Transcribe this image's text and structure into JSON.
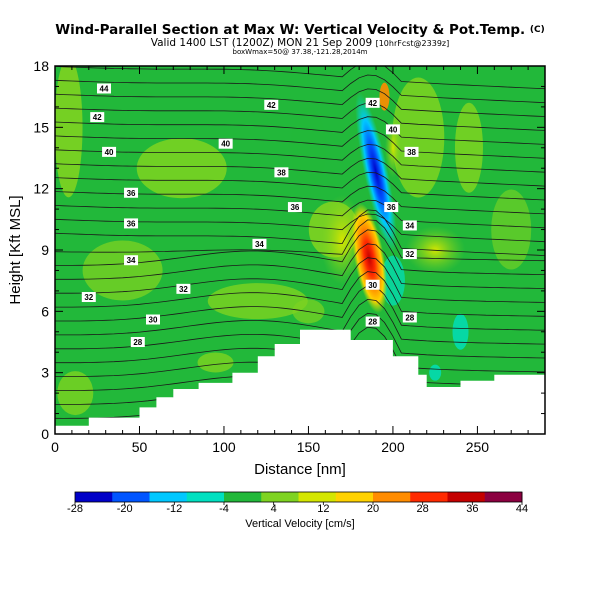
{
  "header": {
    "title": "Wind-Parallel Section at Max W: Vertical Velocity & Pot.Temp.",
    "title_mark": "(C)",
    "valid_line": "Valid 1400 LST (1200Z) MON 21 Sep 2009",
    "valid_suffix": "[10hrFcst@2339z]",
    "extra_line": "boxWmax=50@ 37.38,-121.28,2014m"
  },
  "chart_data": {
    "type": "contour",
    "xlabel": "Distance [nm]",
    "ylabel": "Height [Kft MSL]",
    "xlim": [
      0,
      290
    ],
    "ylim": [
      0,
      18
    ],
    "xticks": [
      "0",
      "50",
      "100",
      "150",
      "200",
      "250"
    ],
    "yticks": [
      "0",
      "3",
      "6",
      "9",
      "12",
      "15",
      "18"
    ],
    "colorbar": {
      "title": "Vertical Velocity [cm/s]",
      "tick_labels": [
        "-28",
        "-20",
        "-12",
        "-4",
        "4",
        "12",
        "20",
        "28",
        "36",
        "44"
      ],
      "colors": [
        "#0000c8",
        "#0055ff",
        "#00c8ff",
        "#00e0c0",
        "#22b83a",
        "#7ed321",
        "#d4e600",
        "#ffd200",
        "#ff8c00",
        "#ff2a00",
        "#c40000",
        "#8b0040"
      ]
    },
    "terrain": {
      "x": [
        0,
        20,
        20,
        50,
        50,
        60,
        60,
        70,
        70,
        85,
        85,
        105,
        105,
        120,
        120,
        130,
        130,
        145,
        145,
        175,
        175,
        200,
        200,
        215,
        215,
        220,
        220,
        240,
        240,
        260,
        260,
        290
      ],
      "height": [
        0.4,
        0.4,
        0.8,
        0.8,
        1.3,
        1.3,
        1.8,
        1.8,
        2.2,
        2.2,
        2.5,
        2.5,
        3.0,
        3.0,
        3.8,
        3.8,
        4.4,
        4.4,
        5.1,
        5.1,
        4.6,
        4.6,
        3.8,
        3.8,
        2.9,
        2.9,
        2.3,
        2.3,
        2.6,
        2.6,
        2.9,
        2.9
      ]
    },
    "velocity_features": [
      {
        "name": "updraft",
        "x": 185,
        "height": 8.8,
        "value": 44
      },
      {
        "name": "downdraft",
        "x": 192,
        "height": 13,
        "value": -28
      }
    ],
    "theta_contour_labels": [
      {
        "value": "44",
        "x": 29,
        "height": 16.9
      },
      {
        "value": "42",
        "x": 25,
        "height": 15.5
      },
      {
        "value": "42",
        "x": 128,
        "height": 16.1
      },
      {
        "value": "42",
        "x": 188,
        "height": 16.2
      },
      {
        "value": "40",
        "x": 32,
        "height": 13.8
      },
      {
        "value": "40",
        "x": 101,
        "height": 14.2
      },
      {
        "value": "40",
        "x": 200,
        "height": 14.9
      },
      {
        "value": "38",
        "x": 134,
        "height": 12.8
      },
      {
        "value": "38",
        "x": 211,
        "height": 13.8
      },
      {
        "value": "36",
        "x": 45,
        "height": 11.8
      },
      {
        "value": "36",
        "x": 142,
        "height": 11.1
      },
      {
        "value": "36",
        "x": 199,
        "height": 11.1
      },
      {
        "value": "36",
        "x": 45,
        "height": 10.3
      },
      {
        "value": "34",
        "x": 121,
        "height": 9.3
      },
      {
        "value": "34",
        "x": 210,
        "height": 10.2
      },
      {
        "value": "34",
        "x": 45,
        "height": 8.5
      },
      {
        "value": "32",
        "x": 210,
        "height": 8.8
      },
      {
        "value": "32",
        "x": 20,
        "height": 6.7
      },
      {
        "value": "32",
        "x": 76,
        "height": 7.1
      },
      {
        "value": "30",
        "x": 188,
        "height": 7.3
      },
      {
        "value": "30",
        "x": 58,
        "height": 5.6
      },
      {
        "value": "28",
        "x": 210,
        "height": 5.7
      },
      {
        "value": "28",
        "x": 49,
        "height": 4.5
      },
      {
        "value": "28",
        "x": 188,
        "height": 5.5
      }
    ]
  }
}
